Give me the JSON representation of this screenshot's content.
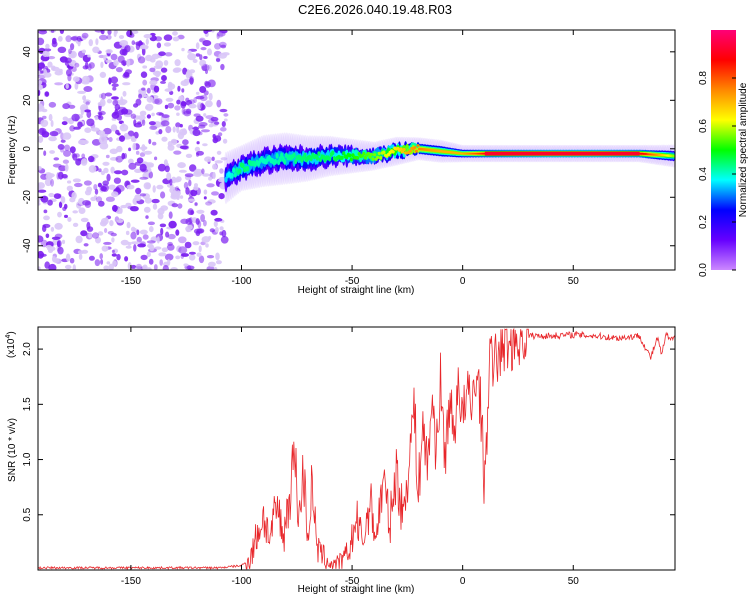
{
  "title": "C2E6.2026.040.19.48.R03",
  "colors": {
    "axis": "#000000",
    "line": "#e8262a",
    "noise_purple": "#7a1cf0",
    "noise_light": "#d9c6f7"
  },
  "chart_data": [
    {
      "type": "heatmap",
      "xlabel": "Height of straight line (km)",
      "ylabel": "Frequency (Hz)",
      "xlim": [
        -192,
        96
      ],
      "ylim": [
        -50,
        49
      ],
      "xticks": [
        -150,
        -100,
        -50,
        0,
        50
      ],
      "yticks": [
        -40,
        -20,
        0,
        20,
        40
      ],
      "colorbar": {
        "label": "Normalized spectral amplitude",
        "range": [
          0,
          1
        ],
        "ticks": [
          "0.0",
          "0.2",
          "0.4",
          "0.6",
          "0.8"
        ],
        "tick_values": [
          0.0,
          0.2,
          0.4,
          0.6,
          0.8
        ],
        "stops": [
          "#cc88ff",
          "#6600ff",
          "#0000ff",
          "#00ffff",
          "#00ff00",
          "#ffff00",
          "#ff8800",
          "#ff0000",
          "#ff0077"
        ]
      },
      "noise_region_x": [
        -192,
        -107
      ],
      "signal_track": [
        {
          "x": -107,
          "y": -12,
          "amp": 0.35,
          "width": 9
        },
        {
          "x": -100,
          "y": -8,
          "amp": 0.45,
          "width": 8
        },
        {
          "x": -90,
          "y": -5,
          "amp": 0.4,
          "width": 9
        },
        {
          "x": -80,
          "y": -4,
          "amp": 0.42,
          "width": 9
        },
        {
          "x": -70,
          "y": -4,
          "amp": 0.45,
          "width": 8
        },
        {
          "x": -60,
          "y": -3,
          "amp": 0.45,
          "width": 7
        },
        {
          "x": -50,
          "y": -3,
          "amp": 0.5,
          "width": 6
        },
        {
          "x": -40,
          "y": -3,
          "amp": 0.55,
          "width": 5
        },
        {
          "x": -30,
          "y": -1,
          "amp": 0.65,
          "width": 5
        },
        {
          "x": -20,
          "y": 0,
          "amp": 0.75,
          "width": 4
        },
        {
          "x": -10,
          "y": -1,
          "amp": 0.7,
          "width": 4
        },
        {
          "x": 0,
          "y": -2,
          "amp": 0.7,
          "width": 3
        },
        {
          "x": 10,
          "y": -2,
          "amp": 0.85,
          "width": 3
        },
        {
          "x": 20,
          "y": -2,
          "amp": 0.9,
          "width": 3
        },
        {
          "x": 40,
          "y": -2,
          "amp": 0.95,
          "width": 3
        },
        {
          "x": 60,
          "y": -2,
          "amp": 0.95,
          "width": 3
        },
        {
          "x": 80,
          "y": -2,
          "amp": 0.9,
          "width": 3
        },
        {
          "x": 96,
          "y": -3,
          "amp": 0.55,
          "width": 4
        }
      ]
    },
    {
      "type": "line",
      "xlabel": "Height of straight line (km)",
      "ylabel": "SNR (10 * v/v)",
      "scale_label": "(x10",
      "scale_exponent": "4",
      "scale_suffix": ")",
      "xlim": [
        -192,
        96
      ],
      "ylim": [
        0,
        2.2
      ],
      "xticks": [
        -150,
        -100,
        -50,
        0,
        50
      ],
      "yticks": [
        0.5,
        1.0,
        1.5,
        2.0
      ],
      "ytick_labels": [
        "0.5",
        "1.0",
        "1.5",
        "2.0"
      ],
      "series": [
        {
          "name": "SNR",
          "x": [
            -192,
            -150,
            -110,
            -100,
            -96,
            -93,
            -90,
            -87,
            -84,
            -81,
            -78,
            -76,
            -74,
            -72,
            -70,
            -68,
            -66,
            -63,
            -60,
            -57,
            -54,
            -51,
            -48,
            -45,
            -42,
            -39,
            -36,
            -33,
            -30,
            -27,
            -24,
            -22,
            -20,
            -18,
            -16,
            -14,
            -12,
            -10,
            -8,
            -6,
            -4,
            -2,
            0,
            2,
            4,
            6,
            8,
            10,
            12,
            14,
            17,
            20,
            25,
            30,
            40,
            50,
            60,
            70,
            80,
            85,
            88,
            90,
            92,
            94,
            96
          ],
          "y": [
            0.02,
            0.02,
            0.02,
            0.04,
            0.1,
            0.32,
            0.48,
            0.28,
            0.58,
            0.3,
            0.72,
            1.1,
            0.45,
            0.9,
            0.3,
            0.8,
            0.2,
            0.12,
            0.06,
            0.04,
            0.08,
            0.2,
            0.45,
            0.25,
            0.62,
            0.3,
            0.82,
            0.4,
            0.9,
            0.48,
            1.05,
            1.5,
            0.7,
            1.35,
            0.9,
            1.55,
            1.1,
            1.7,
            1.0,
            1.55,
            1.2,
            1.75,
            1.35,
            1.6,
            1.45,
            1.8,
            1.55,
            0.72,
            1.9,
            1.85,
            2.0,
            2.05,
            2.1,
            2.12,
            2.12,
            2.13,
            2.12,
            2.1,
            2.12,
            1.92,
            2.1,
            1.95,
            2.13,
            2.08,
            2.1
          ]
        }
      ]
    }
  ]
}
